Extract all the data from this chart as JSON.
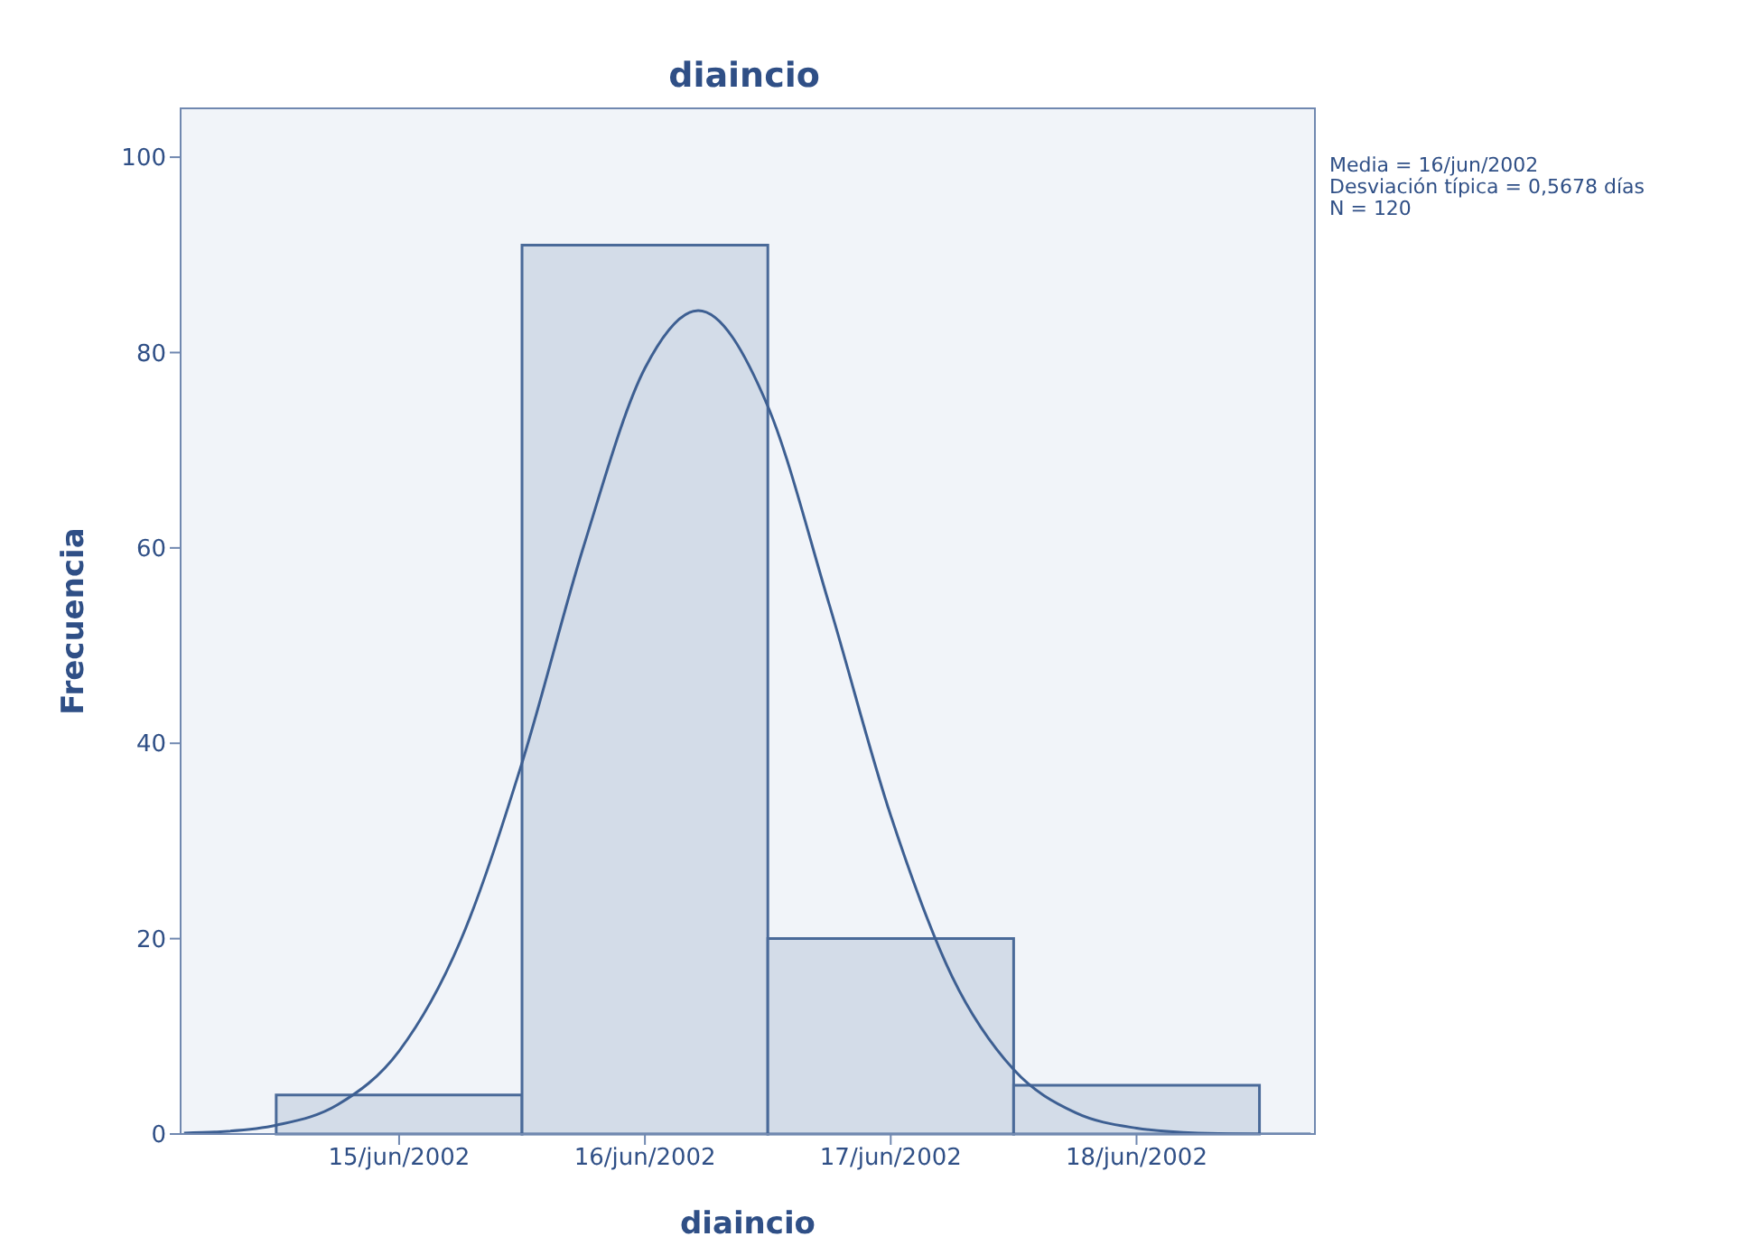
{
  "chart_data": {
    "type": "histogram",
    "title": "diaincio",
    "xlabel": "diaincio",
    "ylabel": "Frecuencia",
    "bins": [
      "2002-06-14T12:00",
      "2002-06-15T12:00",
      "2002-06-16T12:00",
      "2002-06-17T12:00",
      "2002-06-18T12:00"
    ],
    "values": [
      4,
      91,
      20,
      5
    ],
    "color": "#d3dce8",
    "series": [
      {
        "type": "line",
        "color": "#3d5f92",
        "x": [
          "2002-06-14T03:00",
          "2002-06-14T06:00",
          "2002-06-14T12:00",
          "2002-06-14T18:00",
          "2002-06-15T00:00",
          "2002-06-15T06:00",
          "2002-06-15T12:00",
          "2002-06-15T18:00",
          "2002-06-16T00:00",
          "2002-06-16T05:12",
          "2002-06-16T12:00",
          "2002-06-16T18:00",
          "2002-06-17T00:00",
          "2002-06-17T06:00",
          "2002-06-17T12:00",
          "2002-06-17T18:00",
          "2002-06-18T00:00",
          "2002-06-18T06:00",
          "2002-06-18T12:00",
          "2002-06-18T17:00"
        ],
        "values": [
          0.1,
          0.2,
          0.9,
          3.0,
          8.5,
          19.8,
          38.0,
          60.1,
          78.4,
          84.3,
          74.5,
          54.2,
          32.6,
          16.1,
          6.6,
          2.2,
          0.6,
          0.1,
          0.0,
          0.0
        ]
      }
    ],
    "xlim": [
      "2002-06-14T02:40",
      "2002-06-18T17:25"
    ],
    "xticks": [
      {
        "value": "2002-06-15",
        "label": "15/jun/2002"
      },
      {
        "value": "2002-06-16",
        "label": "16/jun/2002"
      },
      {
        "value": "2002-06-17",
        "label": "17/jun/2002"
      },
      {
        "value": "2002-06-18",
        "label": "18/jun/2002"
      }
    ],
    "ylim": [
      0,
      105
    ],
    "yticks": [
      0,
      20,
      40,
      60,
      80,
      100
    ],
    "annotations": [
      "Media = 16/jun/2002",
      "Desviación típica = 0,5678 días",
      "N = 120"
    ]
  }
}
